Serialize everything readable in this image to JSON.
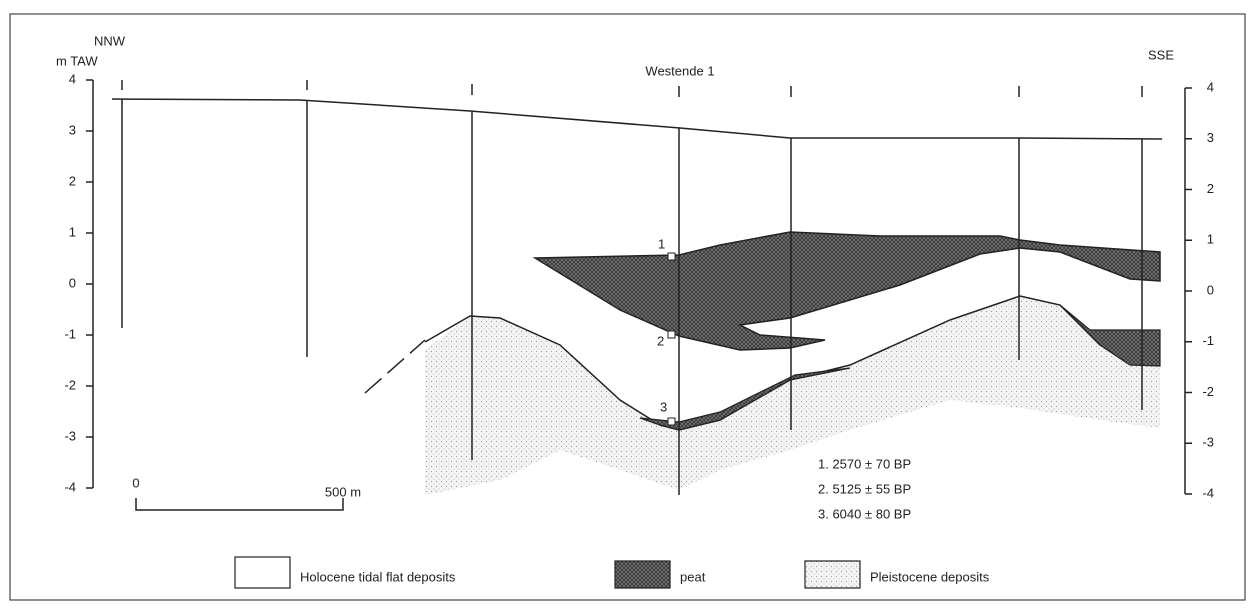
{
  "title": "Westende 1",
  "directions": {
    "left": "NNW",
    "right": "SSE"
  },
  "left_axis": {
    "label": "m TAW",
    "ticks": [
      4,
      3,
      2,
      1,
      0,
      -1,
      -2,
      -3,
      -4
    ]
  },
  "right_axis": {
    "ticks": [
      4,
      3,
      2,
      1,
      0,
      -1,
      -2,
      -3,
      -4
    ]
  },
  "samples": [
    "1",
    "2",
    "3"
  ],
  "dates": [
    "1.  2570 ± 70 BP",
    "2.  5125 ± 55 BP",
    "3.  6040 ± 80 BP"
  ],
  "scale_bar": {
    "start": "0",
    "end": "500 m"
  },
  "legend": [
    "Holocene tidal flat deposits",
    "peat",
    "Pleistocene deposits"
  ]
}
